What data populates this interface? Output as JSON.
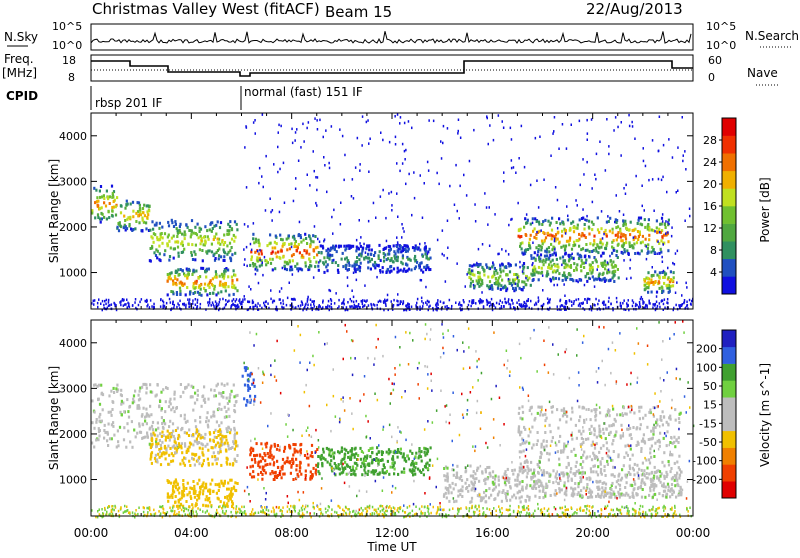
{
  "header": {
    "title": "Christmas Valley West (fitACF)",
    "beam": "Beam 15",
    "date": "22/Aug/2013"
  },
  "top_panels": {
    "nsky_label": "N.Sky",
    "nsky_ticks": [
      "10^5",
      "10^0"
    ],
    "nsearch_label": "N.Search",
    "nsearch_ticks": [
      "10^5",
      "10^0"
    ],
    "freq_label": "Freq.",
    "freq_unit": "[MHz]",
    "freq_ticks": [
      "18",
      "8"
    ],
    "nave_label": "Nave",
    "nave_ticks": [
      "60",
      "0"
    ],
    "cpid_label": "CPID",
    "cpid_segments": [
      {
        "text": "rbsp 201 IF",
        "start_hour": 0.0
      },
      {
        "text": "normal (fast) 151 IF",
        "start_hour": 6.0
      }
    ]
  },
  "colors": {
    "power_scale": [
      "#1010e0",
      "#2050c0",
      "#309060",
      "#50a840",
      "#70c030",
      "#c0e020",
      "#f0b000",
      "#f07000",
      "#f03000",
      "#e00000"
    ],
    "velocity_scale": [
      "#2020c0",
      "#3060e0",
      "#40a030",
      "#70d040",
      "#bdbdbd",
      "#bdbdbd",
      "#f0c000",
      "#f08000",
      "#f04000",
      "#e00000"
    ],
    "ground_scatter": "#bdbdbd"
  },
  "chart_data": [
    {
      "type": "heatmap",
      "name": "power",
      "ylabel": "Slant Range [km]",
      "xlabel": "Time UT",
      "xlim": [
        0,
        24
      ],
      "ylim": [
        200,
        4500
      ],
      "x_ticks": [
        "00:00",
        "04:00",
        "08:00",
        "12:00",
        "16:00",
        "20:00",
        "00:00"
      ],
      "y_ticks": [
        1000,
        2000,
        3000,
        4000
      ],
      "colorbar_label": "Power [dB]",
      "colorbar_ticks": [
        "4",
        "8",
        "12",
        "16",
        "20",
        "24",
        "28"
      ],
      "colorbar_range": [
        0,
        30
      ],
      "bands": [
        {
          "t0": 0.0,
          "t1": 1.0,
          "r_center": 2500,
          "r_width": 400,
          "peak": 22
        },
        {
          "t0": 1.0,
          "t1": 2.3,
          "r_center": 2250,
          "r_width": 350,
          "peak": 20
        },
        {
          "t0": 2.3,
          "t1": 5.8,
          "r_center": 1700,
          "r_width": 450,
          "peak": 18
        },
        {
          "t0": 3.0,
          "t1": 5.8,
          "r_center": 800,
          "r_width": 300,
          "peak": 24
        },
        {
          "t0": 6.3,
          "t1": 9.0,
          "r_center": 1450,
          "r_width": 400,
          "peak": 26
        },
        {
          "t0": 9.0,
          "t1": 13.5,
          "r_center": 1300,
          "r_width": 300,
          "peak": 8
        },
        {
          "t0": 15.0,
          "t1": 17.5,
          "r_center": 900,
          "r_width": 300,
          "peak": 16
        },
        {
          "t0": 17.0,
          "t1": 23.0,
          "r_center": 1800,
          "r_width": 400,
          "peak": 24
        },
        {
          "t0": 17.5,
          "t1": 21.0,
          "r_center": 1100,
          "r_width": 300,
          "peak": 16
        },
        {
          "t0": 22.0,
          "t1": 23.2,
          "r_center": 800,
          "r_width": 250,
          "peak": 22
        }
      ]
    },
    {
      "type": "heatmap",
      "name": "velocity",
      "ylabel": "Slant Range [km]",
      "xlabel": "Time UT",
      "xlim": [
        0,
        24
      ],
      "ylim": [
        200,
        4500
      ],
      "x_ticks": [
        "00:00",
        "04:00",
        "08:00",
        "12:00",
        "16:00",
        "20:00",
        "00:00"
      ],
      "y_ticks": [
        1000,
        2000,
        3000,
        4000
      ],
      "colorbar_label": "Velocity [m s^-1]",
      "colorbar_ticks": [
        "200",
        "100",
        "50",
        "15",
        "-15",
        "-50",
        "-100",
        "-200"
      ],
      "colorbar_range": [
        -250,
        250
      ],
      "bands": [
        {
          "t0": 0.0,
          "t1": 5.8,
          "r_center": 2400,
          "r_width": 700,
          "vel": 0
        },
        {
          "t0": 2.3,
          "t1": 5.8,
          "r_center": 1700,
          "r_width": 400,
          "vel": -40
        },
        {
          "t0": 3.0,
          "t1": 5.8,
          "r_center": 700,
          "r_width": 300,
          "vel": -60
        },
        {
          "t0": 6.0,
          "t1": 6.5,
          "r_center": 3000,
          "r_width": 500,
          "vel": 120
        },
        {
          "t0": 6.3,
          "t1": 9.0,
          "r_center": 1400,
          "r_width": 400,
          "vel": -200
        },
        {
          "t0": 9.0,
          "t1": 13.5,
          "r_center": 1400,
          "r_width": 300,
          "vel": 40
        },
        {
          "t0": 14.0,
          "t1": 17.5,
          "r_center": 900,
          "r_width": 400,
          "vel": 0
        },
        {
          "t0": 17.0,
          "t1": 23.5,
          "r_center": 1900,
          "r_width": 700,
          "vel": 0
        },
        {
          "t0": 17.5,
          "t1": 23.5,
          "r_center": 900,
          "r_width": 300,
          "vel": 0
        }
      ]
    }
  ]
}
